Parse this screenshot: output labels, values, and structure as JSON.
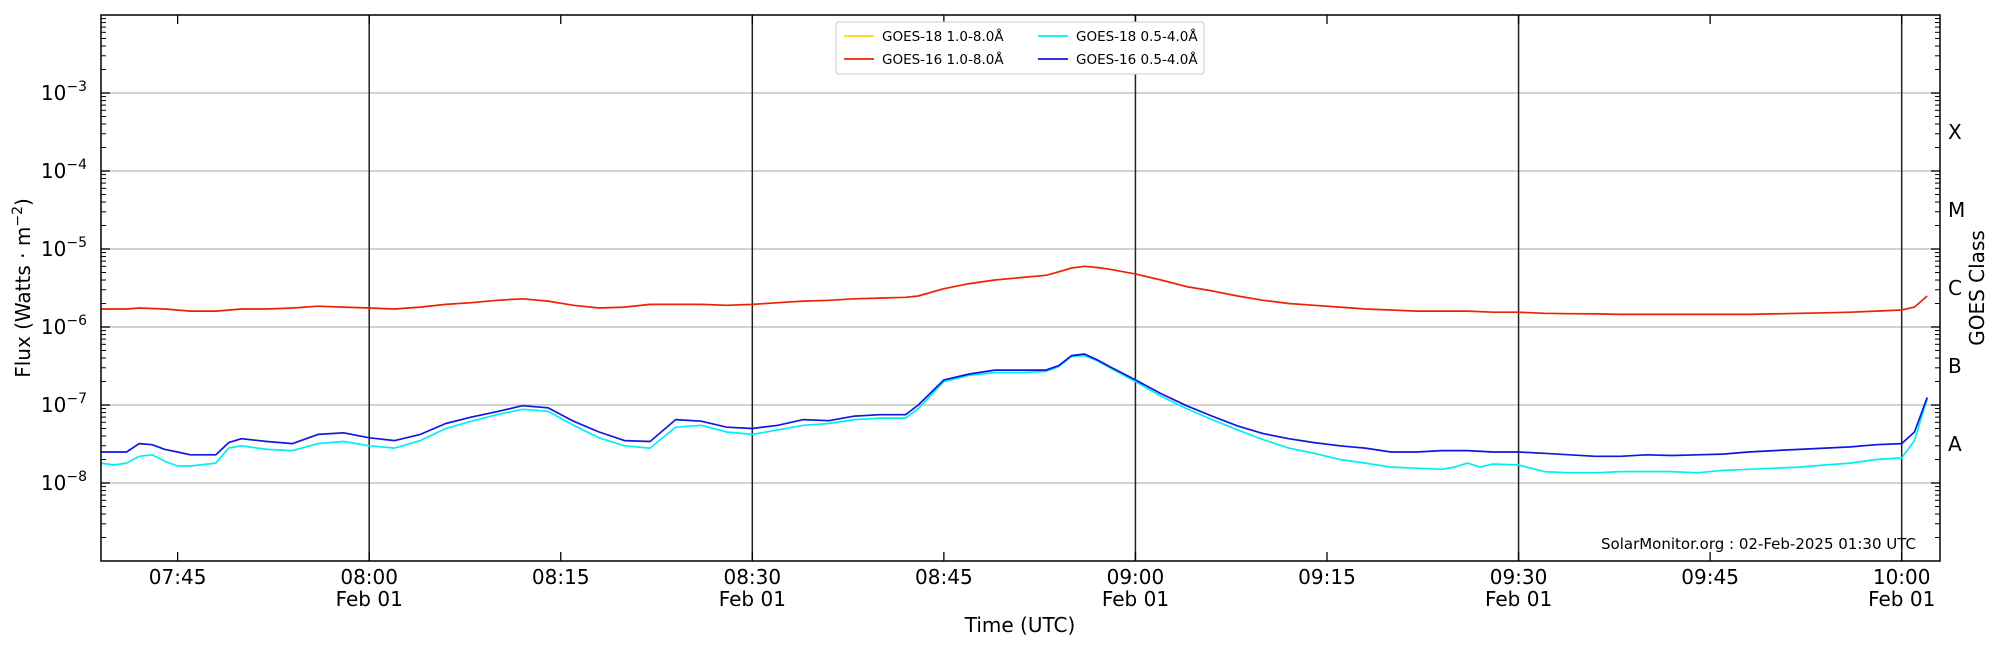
{
  "chart_data": {
    "type": "line",
    "xlabel": "Time (UTC)",
    "ylabel": "Flux (Watts · m⁻²)",
    "ylabel_right": "GOES Class",
    "y_scale": "log",
    "ylim": [
      1e-09,
      0.01
    ],
    "xlim": [
      "2025-02-01 07:39",
      "2025-02-01 10:03"
    ],
    "grid": "horizontal at decades",
    "legend_position": "top-center",
    "credit": "SolarMonitor.org : 02-Feb-2025 01:30 UTC",
    "y_ticks": [
      {
        "value": 1e-08,
        "base": "10",
        "exp": "−8"
      },
      {
        "value": 1e-07,
        "base": "10",
        "exp": "−7"
      },
      {
        "value": 1e-06,
        "base": "10",
        "exp": "−6"
      },
      {
        "value": 1e-05,
        "base": "10",
        "exp": "−5"
      },
      {
        "value": 0.0001,
        "base": "10",
        "exp": "−4"
      },
      {
        "value": 0.001,
        "base": "10",
        "exp": "−3"
      }
    ],
    "x_ticks": [
      {
        "time": "07:45",
        "line1": "07:45",
        "line2": ""
      },
      {
        "time": "08:00",
        "line1": "08:00",
        "line2": "Feb 01"
      },
      {
        "time": "08:15",
        "line1": "08:15",
        "line2": ""
      },
      {
        "time": "08:30",
        "line1": "08:30",
        "line2": "Feb 01"
      },
      {
        "time": "08:45",
        "line1": "08:45",
        "line2": ""
      },
      {
        "time": "09:00",
        "line1": "09:00",
        "line2": "Feb 01"
      },
      {
        "time": "09:15",
        "line1": "09:15",
        "line2": ""
      },
      {
        "time": "09:30",
        "line1": "09:30",
        "line2": "Feb 01"
      },
      {
        "time": "09:45",
        "line1": "09:45",
        "line2": ""
      },
      {
        "time": "10:00",
        "line1": "10:00",
        "line2": "Feb 01"
      }
    ],
    "goes_classes": [
      {
        "label": "A",
        "value": 3.16e-08
      },
      {
        "label": "B",
        "value": 3.16e-07
      },
      {
        "label": "C",
        "value": 3.16e-06
      },
      {
        "label": "M",
        "value": 3.16e-05
      },
      {
        "label": "X",
        "value": 0.000316
      }
    ],
    "series": [
      {
        "name": "GOES-18 1.0-8.0Å",
        "color": "#ffd700",
        "x": [],
        "y": []
      },
      {
        "name": "GOES-16 1.0-8.0Å",
        "color": "#ee2200",
        "x": [
          "07:39",
          "07:41",
          "07:42",
          "07:44",
          "07:46",
          "07:48",
          "07:50",
          "07:52",
          "07:54",
          "07:56",
          "07:58",
          "08:00",
          "08:02",
          "08:04",
          "08:06",
          "08:08",
          "08:10",
          "08:12",
          "08:14",
          "08:16",
          "08:18",
          "08:20",
          "08:22",
          "08:24",
          "08:26",
          "08:28",
          "08:30",
          "08:32",
          "08:34",
          "08:36",
          "08:38",
          "08:40",
          "08:42",
          "08:43",
          "08:45",
          "08:47",
          "08:49",
          "08:51",
          "08:53",
          "08:54",
          "08:55",
          "08:56",
          "08:57",
          "08:58",
          "09:00",
          "09:02",
          "09:04",
          "09:06",
          "09:08",
          "09:10",
          "09:12",
          "09:14",
          "09:16",
          "09:18",
          "09:20",
          "09:22",
          "09:24",
          "09:26",
          "09:28",
          "09:30",
          "09:32",
          "09:34",
          "09:36",
          "09:38",
          "09:40",
          "09:42",
          "09:44",
          "09:46",
          "09:48",
          "09:50",
          "09:52",
          "09:54",
          "09:56",
          "09:58",
          "10:00",
          "10:01",
          "10:02"
        ],
        "y": [
          1.7e-06,
          1.7e-06,
          1.75e-06,
          1.7e-06,
          1.6e-06,
          1.6e-06,
          1.7e-06,
          1.7e-06,
          1.75e-06,
          1.85e-06,
          1.8e-06,
          1.75e-06,
          1.7e-06,
          1.8e-06,
          1.95e-06,
          2.05e-06,
          2.2e-06,
          2.3e-06,
          2.15e-06,
          1.9e-06,
          1.75e-06,
          1.8e-06,
          1.95e-06,
          1.95e-06,
          1.95e-06,
          1.9e-06,
          1.95e-06,
          2.05e-06,
          2.15e-06,
          2.2e-06,
          2.3e-06,
          2.35e-06,
          2.4e-06,
          2.5e-06,
          3.1e-06,
          3.6e-06,
          4e-06,
          4.3e-06,
          4.6e-06,
          5.1e-06,
          5.7e-06,
          6e-06,
          5.8e-06,
          5.5e-06,
          4.8e-06,
          4e-06,
          3.3e-06,
          2.9e-06,
          2.5e-06,
          2.2e-06,
          2e-06,
          1.9e-06,
          1.8e-06,
          1.7e-06,
          1.65e-06,
          1.6e-06,
          1.6e-06,
          1.6e-06,
          1.55e-06,
          1.55e-06,
          1.5e-06,
          1.48e-06,
          1.47e-06,
          1.45e-06,
          1.45e-06,
          1.45e-06,
          1.45e-06,
          1.45e-06,
          1.45e-06,
          1.47e-06,
          1.5e-06,
          1.52e-06,
          1.55e-06,
          1.6e-06,
          1.65e-06,
          1.8e-06,
          2.5e-06
        ]
      },
      {
        "name": "GOES-18 0.5-4.0Å",
        "color": "#00f0f0",
        "x": [
          "07:39",
          "07:40",
          "07:41",
          "07:42",
          "07:43",
          "07:44",
          "07:45",
          "07:46",
          "07:48",
          "07:49",
          "07:50",
          "07:52",
          "07:54",
          "07:56",
          "07:58",
          "08:00",
          "08:02",
          "08:04",
          "08:06",
          "08:08",
          "08:10",
          "08:12",
          "08:14",
          "08:16",
          "08:18",
          "08:20",
          "08:22",
          "08:24",
          "08:26",
          "08:28",
          "08:30",
          "08:32",
          "08:34",
          "08:36",
          "08:38",
          "08:40",
          "08:42",
          "08:43",
          "08:45",
          "08:47",
          "08:49",
          "08:51",
          "08:53",
          "08:54",
          "08:55",
          "08:56",
          "08:57",
          "08:58",
          "09:00",
          "09:02",
          "09:04",
          "09:06",
          "09:08",
          "09:10",
          "09:12",
          "09:14",
          "09:16",
          "09:18",
          "09:20",
          "09:22",
          "09:24",
          "09:25",
          "09:26",
          "09:27",
          "09:28",
          "09:30",
          "09:32",
          "09:34",
          "09:36",
          "09:38",
          "09:40",
          "09:42",
          "09:44",
          "09:46",
          "09:48",
          "09:50",
          "09:52",
          "09:54",
          "09:56",
          "09:58",
          "10:00",
          "10:01",
          "10:02"
        ],
        "y": [
          1.8e-08,
          1.7e-08,
          1.8e-08,
          2.2e-08,
          2.3e-08,
          1.9e-08,
          1.65e-08,
          1.65e-08,
          1.8e-08,
          2.8e-08,
          3e-08,
          2.7e-08,
          2.6e-08,
          3.2e-08,
          3.4e-08,
          3e-08,
          2.8e-08,
          3.5e-08,
          5e-08,
          6.2e-08,
          7.5e-08,
          8.8e-08,
          8.3e-08,
          5.5e-08,
          3.8e-08,
          3e-08,
          2.8e-08,
          5.2e-08,
          5.5e-08,
          4.5e-08,
          4.2e-08,
          4.8e-08,
          5.5e-08,
          5.8e-08,
          6.5e-08,
          6.8e-08,
          6.8e-08,
          9e-08,
          2e-07,
          2.4e-07,
          2.6e-07,
          2.6e-07,
          2.7e-07,
          3.1e-07,
          4.2e-07,
          4.3e-07,
          3.7e-07,
          3e-07,
          2e-07,
          1.3e-07,
          9e-08,
          6.5e-08,
          4.8e-08,
          3.6e-08,
          2.8e-08,
          2.4e-08,
          2e-08,
          1.8e-08,
          1.6e-08,
          1.55e-08,
          1.5e-08,
          1.6e-08,
          1.8e-08,
          1.6e-08,
          1.75e-08,
          1.7e-08,
          1.4e-08,
          1.35e-08,
          1.35e-08,
          1.4e-08,
          1.4e-08,
          1.4e-08,
          1.35e-08,
          1.45e-08,
          1.5e-08,
          1.55e-08,
          1.6e-08,
          1.7e-08,
          1.8e-08,
          2e-08,
          2.1e-08,
          3.5e-08,
          1.2e-07
        ]
      },
      {
        "name": "GOES-16 0.5-4.0Å",
        "color": "#1515e0",
        "x": [
          "07:39",
          "07:40",
          "07:41",
          "07:42",
          "07:43",
          "07:44",
          "07:45",
          "07:46",
          "07:48",
          "07:49",
          "07:50",
          "07:52",
          "07:54",
          "07:56",
          "07:58",
          "08:00",
          "08:02",
          "08:04",
          "08:06",
          "08:08",
          "08:10",
          "08:12",
          "08:14",
          "08:16",
          "08:18",
          "08:20",
          "08:22",
          "08:24",
          "08:26",
          "08:28",
          "08:30",
          "08:32",
          "08:34",
          "08:36",
          "08:38",
          "08:40",
          "08:42",
          "08:43",
          "08:45",
          "08:47",
          "08:49",
          "08:51",
          "08:53",
          "08:54",
          "08:55",
          "08:56",
          "08:57",
          "08:58",
          "09:00",
          "09:02",
          "09:04",
          "09:06",
          "09:08",
          "09:10",
          "09:12",
          "09:14",
          "09:16",
          "09:18",
          "09:20",
          "09:22",
          "09:24",
          "09:26",
          "09:28",
          "09:30",
          "09:32",
          "09:34",
          "09:36",
          "09:38",
          "09:40",
          "09:42",
          "09:44",
          "09:46",
          "09:48",
          "09:50",
          "09:52",
          "09:54",
          "09:56",
          "09:58",
          "10:00",
          "10:01",
          "10:02"
        ],
        "y": [
          2.5e-08,
          2.5e-08,
          2.5e-08,
          3.2e-08,
          3.1e-08,
          2.7e-08,
          2.5e-08,
          2.3e-08,
          2.3e-08,
          3.3e-08,
          3.7e-08,
          3.4e-08,
          3.2e-08,
          4.2e-08,
          4.4e-08,
          3.8e-08,
          3.5e-08,
          4.2e-08,
          5.8e-08,
          7e-08,
          8.2e-08,
          9.8e-08,
          9.2e-08,
          6.2e-08,
          4.5e-08,
          3.5e-08,
          3.4e-08,
          6.5e-08,
          6.2e-08,
          5.2e-08,
          5e-08,
          5.5e-08,
          6.5e-08,
          6.3e-08,
          7.2e-08,
          7.5e-08,
          7.5e-08,
          1e-07,
          2.1e-07,
          2.5e-07,
          2.8e-07,
          2.8e-07,
          2.8e-07,
          3.2e-07,
          4.3e-07,
          4.5e-07,
          3.8e-07,
          3.1e-07,
          2.1e-07,
          1.4e-07,
          9.8e-08,
          7.2e-08,
          5.4e-08,
          4.3e-08,
          3.7e-08,
          3.3e-08,
          3e-08,
          2.8e-08,
          2.5e-08,
          2.5e-08,
          2.6e-08,
          2.6e-08,
          2.5e-08,
          2.5e-08,
          2.4e-08,
          2.3e-08,
          2.2e-08,
          2.2e-08,
          2.3e-08,
          2.25e-08,
          2.3e-08,
          2.35e-08,
          2.5e-08,
          2.6e-08,
          2.7e-08,
          2.8e-08,
          2.9e-08,
          3.1e-08,
          3.2e-08,
          4.5e-08,
          1.25e-07
        ]
      }
    ]
  }
}
